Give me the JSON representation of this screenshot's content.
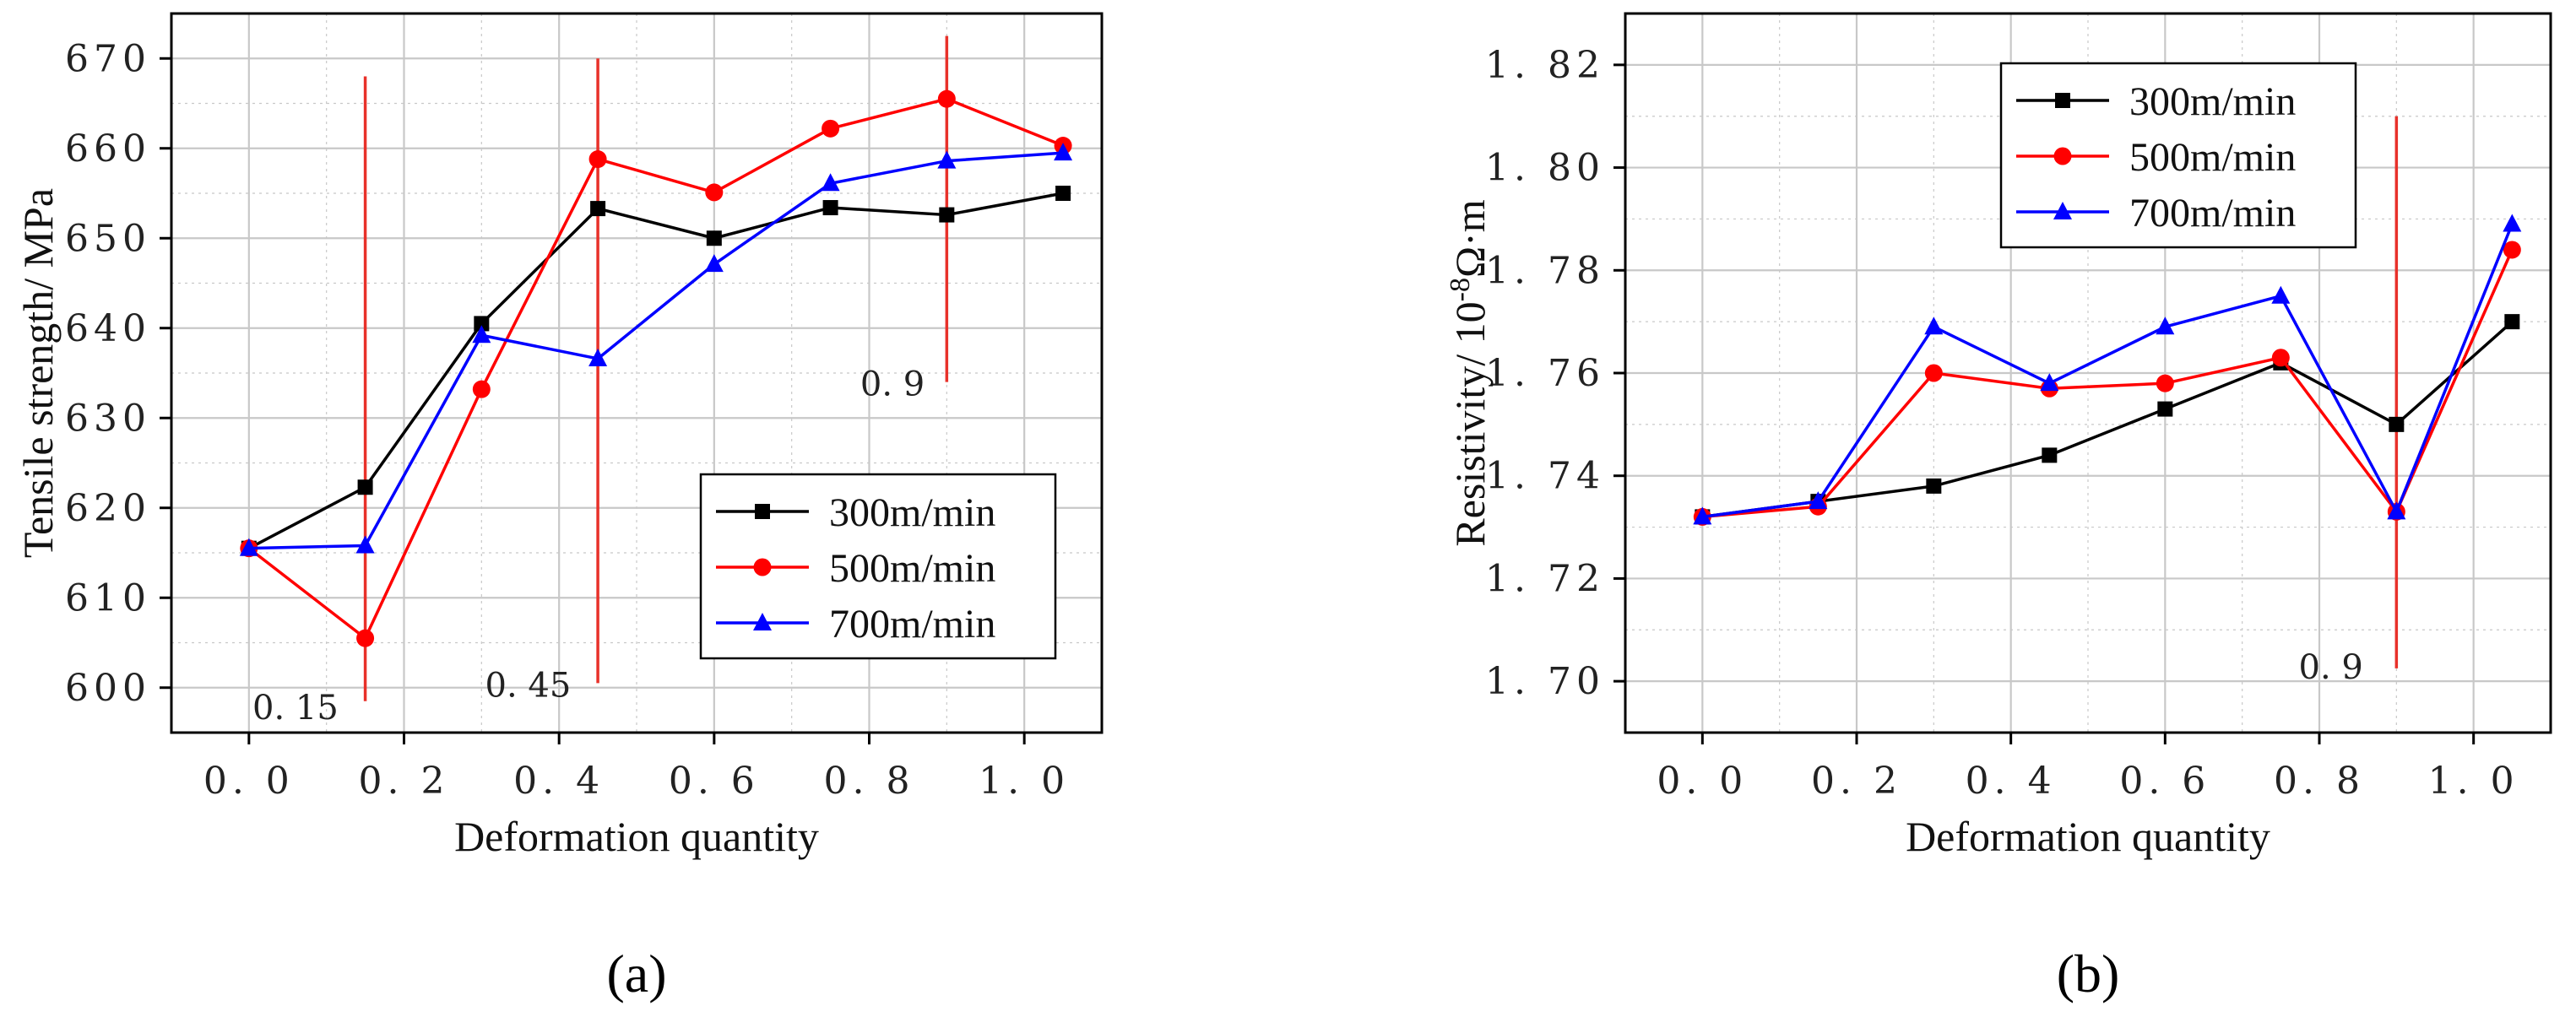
{
  "colors": {
    "s300": "#000000",
    "s500": "#ff0000",
    "s700": "#0000ff",
    "marker_line": "#e8312a",
    "grid": "#c8c8c8"
  },
  "chart_data": [
    {
      "type": "line",
      "panel": "(a)",
      "xlabel": "Deformation quantity",
      "ylabel": "Tensile strength/ MPa",
      "xlim": [
        -0.1,
        1.1
      ],
      "ylim": [
        595,
        675
      ],
      "xticks": [
        0.0,
        0.2,
        0.4,
        0.6,
        0.8,
        1.0
      ],
      "xtick_labels": [
        "0. 0",
        "0. 2",
        "0. 4",
        "0. 6",
        "0. 8",
        "1. 0"
      ],
      "yticks": [
        600,
        610,
        620,
        630,
        640,
        650,
        660,
        670
      ],
      "ytick_labels": [
        "600",
        "610",
        "620",
        "630",
        "640",
        "650",
        "660",
        "670"
      ],
      "x": [
        0.0,
        0.15,
        0.3,
        0.45,
        0.6,
        0.75,
        0.9,
        1.05
      ],
      "series": [
        {
          "name": "300m/min",
          "marker": "square",
          "values": [
            615.5,
            622.3,
            640.5,
            653.3,
            650.0,
            653.4,
            652.6,
            655.0
          ]
        },
        {
          "name": "500m/min",
          "marker": "circle",
          "values": [
            615.5,
            605.5,
            633.2,
            658.8,
            655.1,
            662.2,
            665.5,
            660.3
          ]
        },
        {
          "name": "700m/min",
          "marker": "triangle",
          "values": [
            615.5,
            615.8,
            639.2,
            636.6,
            647.1,
            656.1,
            658.6,
            659.5
          ]
        }
      ],
      "vlines": [
        {
          "x": 0.15,
          "y0": 598.5,
          "y1": 668.0,
          "label": "0. 15",
          "label_x": 0.06,
          "label_y": 596.5
        },
        {
          "x": 0.45,
          "y0": 600.5,
          "y1": 670.0,
          "label": "0. 45",
          "label_x": 0.36,
          "label_y": 599.0
        },
        {
          "x": 0.9,
          "y0": 634.0,
          "y1": 672.5,
          "label": "0. 9",
          "label_x": 0.83,
          "label_y": 632.5
        }
      ],
      "legend_position": "lower-right"
    },
    {
      "type": "line",
      "panel": "(b)",
      "xlabel": "Deformation quantity",
      "ylabel": "Resistivity/ 10-8Ω·m",
      "ylabel_main": "Resistivity/ 10",
      "ylabel_sup": "-8",
      "ylabel_tail": "Ω·m",
      "xlim": [
        -0.1,
        1.1
      ],
      "ylim": [
        1.69,
        1.83
      ],
      "xticks": [
        0.0,
        0.2,
        0.4,
        0.6,
        0.8,
        1.0
      ],
      "xtick_labels": [
        "0. 0",
        "0. 2",
        "0. 4",
        "0. 6",
        "0. 8",
        "1. 0"
      ],
      "yticks": [
        1.7,
        1.72,
        1.74,
        1.76,
        1.78,
        1.8,
        1.82
      ],
      "ytick_labels": [
        "1. 70",
        "1. 72",
        "1. 74",
        "1. 76",
        "1. 78",
        "1. 80",
        "1. 82"
      ],
      "x": [
        0.0,
        0.15,
        0.3,
        0.45,
        0.6,
        0.75,
        0.9,
        1.05
      ],
      "series": [
        {
          "name": "300m/min",
          "marker": "square",
          "values": [
            1.732,
            1.735,
            1.738,
            1.744,
            1.753,
            1.762,
            1.75,
            1.77
          ]
        },
        {
          "name": "500m/min",
          "marker": "circle",
          "values": [
            1.732,
            1.734,
            1.76,
            1.757,
            1.758,
            1.763,
            1.733,
            1.784
          ]
        },
        {
          "name": "700m/min",
          "marker": "triangle",
          "values": [
            1.732,
            1.735,
            1.769,
            1.758,
            1.769,
            1.775,
            1.733,
            1.789
          ]
        }
      ],
      "vlines": [
        {
          "x": 0.9,
          "y0": 1.7025,
          "y1": 1.81,
          "label": "0. 9",
          "label_x": 0.815,
          "label_y": 1.7005
        }
      ],
      "legend_position": "top-left"
    }
  ]
}
